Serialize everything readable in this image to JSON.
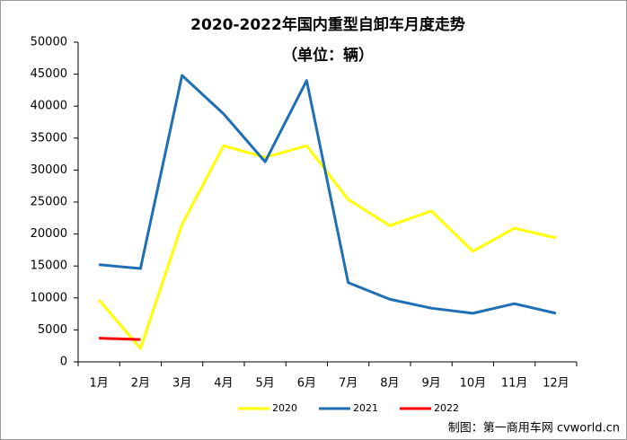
{
  "chart_data": {
    "type": "line",
    "title": "2020-2022年国内重型自卸车月度走势",
    "subtitle": "（单位：辆）",
    "categories": [
      "1月",
      "2月",
      "3月",
      "4月",
      "5月",
      "6月",
      "7月",
      "8月",
      "9月",
      "10月",
      "11月",
      "12月"
    ],
    "series": [
      {
        "name": "2020",
        "color": "#ffff00",
        "values": [
          9700,
          2100,
          21500,
          33800,
          32000,
          33800,
          25400,
          21300,
          23600,
          17300,
          20900,
          19400
        ]
      },
      {
        "name": "2021",
        "color": "#1f6fb4",
        "values": [
          15200,
          14600,
          44800,
          38800,
          31300,
          44000,
          12400,
          9800,
          8400,
          7600,
          9100,
          7600
        ]
      },
      {
        "name": "2022",
        "color": "#ff0000",
        "values": [
          3700,
          3500,
          null,
          null,
          null,
          null,
          null,
          null,
          null,
          null,
          null,
          null
        ]
      }
    ],
    "ylim": [
      0,
      50000
    ],
    "yticks": [
      0,
      5000,
      10000,
      15000,
      20000,
      25000,
      30000,
      35000,
      40000,
      45000,
      50000
    ],
    "grid": false,
    "legend": "bottom",
    "footer": "制图：第一商用车网 cvworld.cn"
  }
}
